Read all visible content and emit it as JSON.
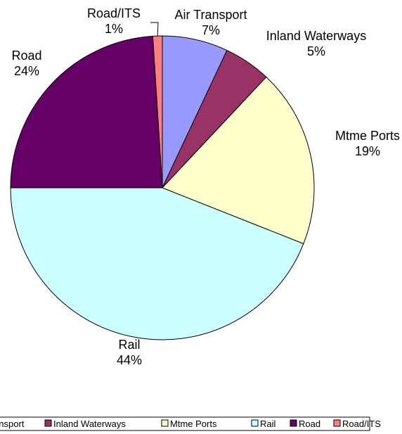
{
  "chart_data": {
    "type": "pie",
    "title": "",
    "slices": [
      {
        "name": "Air Transport",
        "value": 7,
        "label": "7%",
        "color": "#9999ff"
      },
      {
        "name": "Inland Waterways",
        "value": 5,
        "label": "5%",
        "color": "#993366"
      },
      {
        "name": "Mtme Ports",
        "value": 19,
        "label": "19%",
        "color": "#ffffcc"
      },
      {
        "name": "Rail",
        "value": 44,
        "label": "44%",
        "color": "#ccffff"
      },
      {
        "name": "Road",
        "value": 24,
        "label": "24%",
        "color": "#660066"
      },
      {
        "name": "Road/ITS",
        "value": 1,
        "label": "1%",
        "color": "#ff8080"
      }
    ],
    "legend_position": "bottom",
    "legend_entries": [
      "Air Transport",
      "Inland Waterways",
      "Mtme Ports",
      "Rail",
      "Road",
      "Road/ITS"
    ]
  }
}
